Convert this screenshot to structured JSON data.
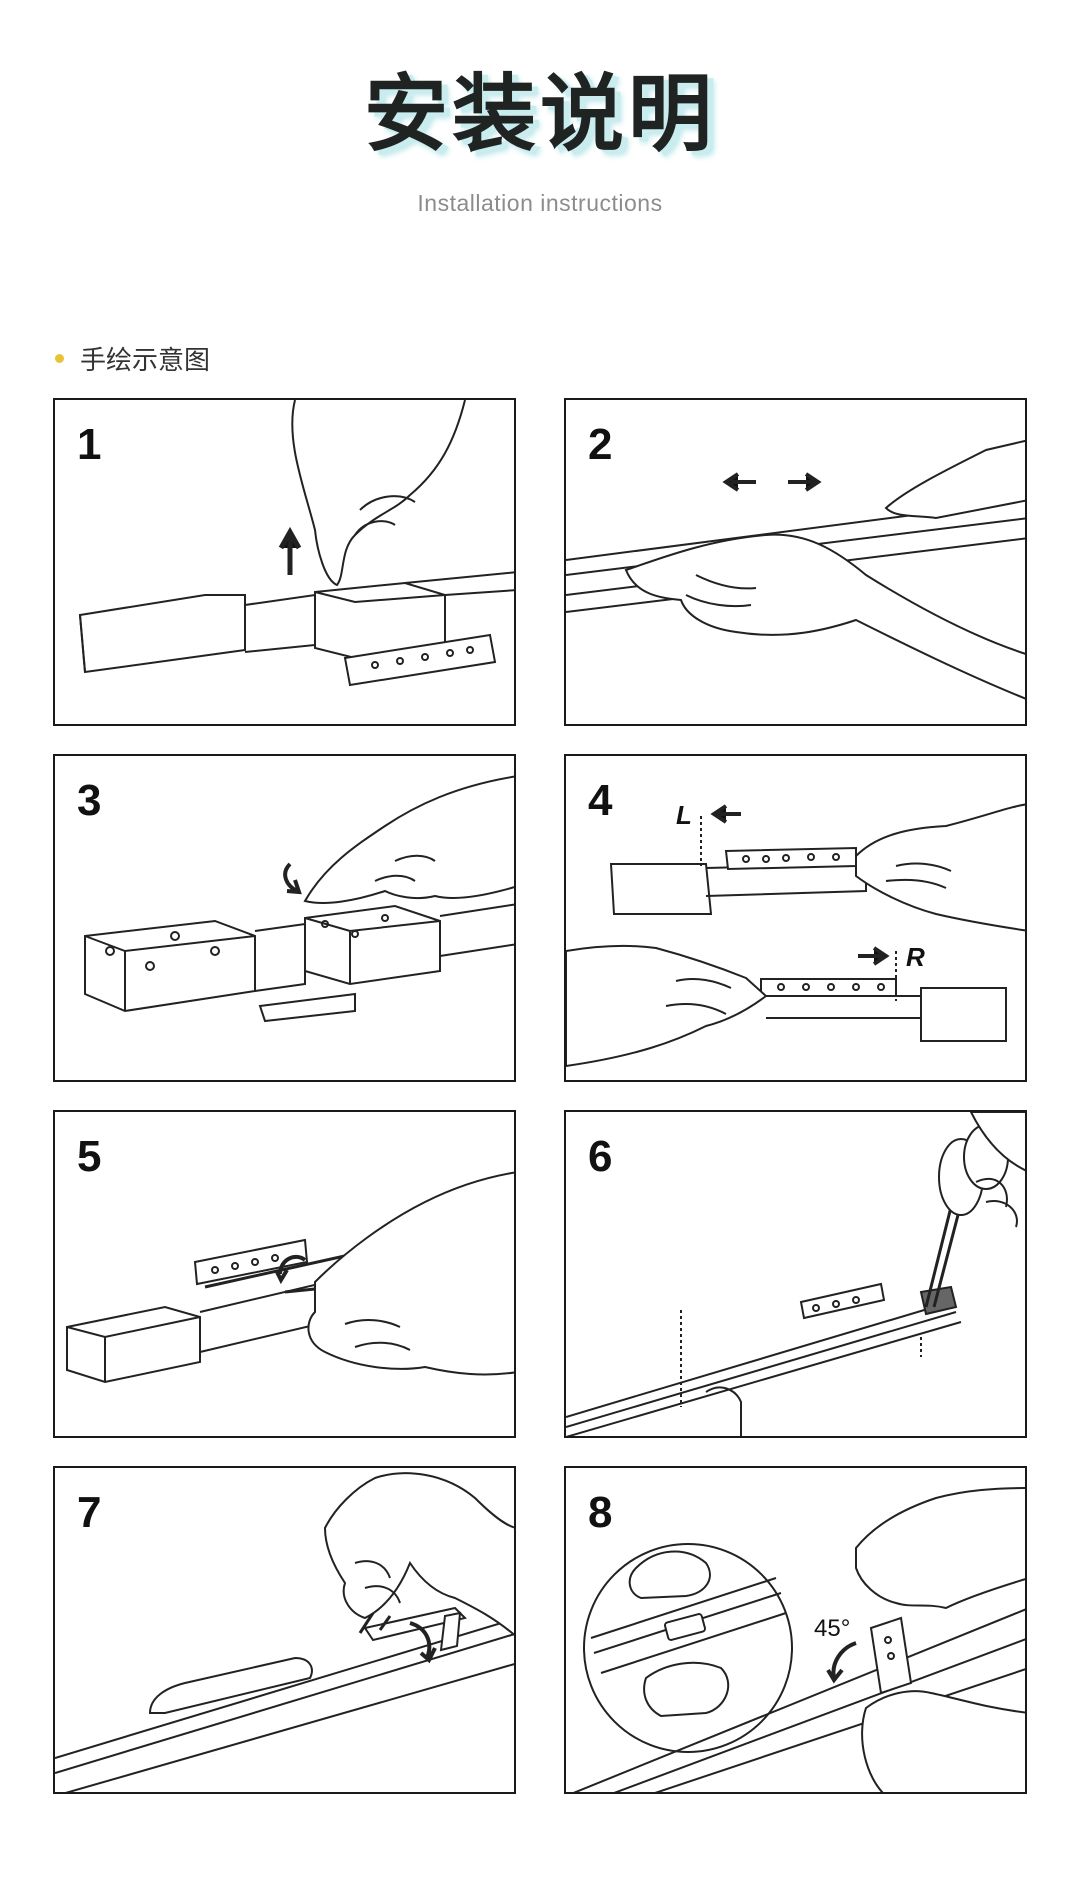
{
  "header": {
    "title": "安装说明",
    "subtitle": "Installation instructions"
  },
  "section": {
    "label": "手绘示意图",
    "dot_color": "#e8c33a"
  },
  "steps": [
    {
      "number": "1"
    },
    {
      "number": "2"
    },
    {
      "number": "3"
    },
    {
      "number": "4",
      "labels": {
        "left": "L",
        "right": "R"
      }
    },
    {
      "number": "5"
    },
    {
      "number": "6"
    },
    {
      "number": "7"
    },
    {
      "number": "8",
      "angle": "45°"
    }
  ]
}
